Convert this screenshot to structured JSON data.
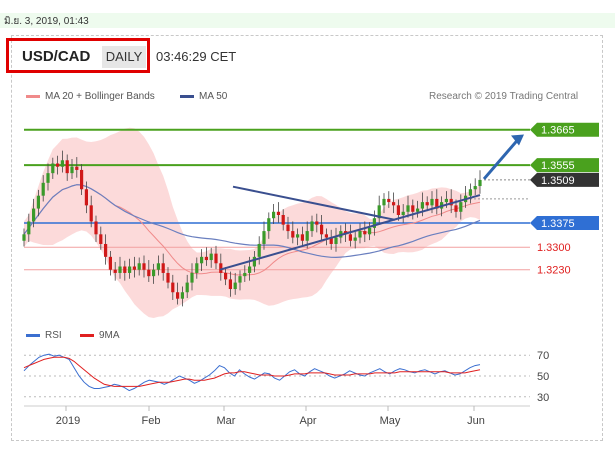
{
  "timestamp": "มิ.ย. 3, 2019, 01:43",
  "header": {
    "symbol": "USD/CAD",
    "period": "DAILY",
    "time": "03:46:29 CET"
  },
  "credit": "Research © 2019 Trading Central",
  "legend": {
    "bollinger": "MA 20 + Bollinger Bands",
    "ma50": "MA 50"
  },
  "rsi_legend": {
    "rsi": "RSI",
    "ma9": "9MA"
  },
  "colors": {
    "green_level": "#4aa11e",
    "blue_level": "#2f6fd4",
    "red_level": "#e02020",
    "dark_label": "#333333",
    "ma50": "#3a4f8f",
    "band_fill": "#fbd3d3",
    "arrow": "#2e66b0"
  },
  "chart_data": [
    {
      "type": "candlestick",
      "title": "USD/CAD",
      "x_tick_labels": [
        "2019",
        "Feb",
        "Mar",
        "Apr",
        "May",
        "Jun"
      ],
      "price_levels": [
        {
          "label": "1.3665",
          "value": 1.3665,
          "color": "#4aa11e",
          "kind": "resistance"
        },
        {
          "label": "1.3555",
          "value": 1.3555,
          "color": "#4aa11e",
          "kind": "resistance"
        },
        {
          "label": "1.3509",
          "value": 1.3509,
          "color": "#333333",
          "kind": "last"
        },
        {
          "label": "1.3375",
          "value": 1.3375,
          "color": "#2f6fd4",
          "kind": "pivot"
        },
        {
          "label": "1.3300",
          "value": 1.33,
          "color": "#e02020",
          "kind": "support"
        },
        {
          "label": "1.3230",
          "value": 1.323,
          "color": "#e02020",
          "kind": "support"
        }
      ],
      "ylim": [
        1.308,
        1.372
      ],
      "series": [
        {
          "name": "MA 20 + Bollinger Bands"
        },
        {
          "name": "MA 50"
        }
      ],
      "close_path": [
        1.334,
        1.338,
        1.342,
        1.346,
        1.35,
        1.353,
        1.356,
        1.355,
        1.357,
        1.353,
        1.355,
        1.354,
        1.348,
        1.343,
        1.338,
        1.334,
        1.331,
        1.327,
        1.323,
        1.322,
        1.324,
        1.322,
        1.324,
        1.323,
        1.325,
        1.323,
        1.321,
        1.323,
        1.325,
        1.322,
        1.319,
        1.316,
        1.314,
        1.316,
        1.319,
        1.322,
        1.325,
        1.327,
        1.326,
        1.328,
        1.325,
        1.322,
        1.32,
        1.317,
        1.319,
        1.321,
        1.322,
        1.324,
        1.327,
        1.331,
        1.335,
        1.339,
        1.341,
        1.34,
        1.337,
        1.335,
        1.333,
        1.334,
        1.332,
        1.335,
        1.338,
        1.337,
        1.334,
        1.333,
        1.331,
        1.333,
        1.335,
        1.334,
        1.332,
        1.333,
        1.335,
        1.334,
        1.336,
        1.339,
        1.343,
        1.345,
        1.344,
        1.343,
        1.34,
        1.341,
        1.343,
        1.341,
        1.342,
        1.344,
        1.343,
        1.345,
        1.342,
        1.344,
        1.345,
        1.343,
        1.341,
        1.344,
        1.346,
        1.348,
        1.349,
        1.3509
      ]
    },
    {
      "type": "line",
      "title": "RSI",
      "ylim": [
        25,
        75
      ],
      "y_ticks": [
        30,
        50,
        70
      ],
      "series": [
        {
          "name": "RSI",
          "color": "#3b6fd0",
          "values": [
            55,
            60,
            64,
            68,
            70,
            71,
            69,
            70,
            68,
            66,
            58,
            50,
            44,
            40,
            38,
            38,
            39,
            40,
            42,
            41,
            39,
            36,
            38,
            41,
            44,
            46,
            45,
            44,
            42,
            44,
            47,
            50,
            48,
            46,
            43,
            45,
            48,
            51,
            55,
            60,
            58,
            53,
            50,
            56,
            52,
            49,
            47,
            50,
            53,
            52,
            48,
            46,
            50,
            54,
            56,
            52,
            50,
            54,
            57,
            55,
            53,
            50,
            48,
            50,
            52,
            55,
            53,
            51,
            50,
            53,
            55,
            57,
            54,
            52,
            55,
            57,
            56,
            54,
            53,
            55,
            56,
            54,
            52,
            54,
            55,
            53,
            51,
            52,
            55,
            58,
            60,
            61
          ]
        },
        {
          "name": "9MA",
          "color": "#e02020",
          "values": [
            58,
            60,
            62,
            64,
            66,
            67,
            68,
            68,
            68,
            67,
            64,
            60,
            56,
            52,
            48,
            45,
            42,
            41,
            40,
            40,
            40,
            40,
            40,
            40,
            41,
            42,
            43,
            44,
            44,
            44,
            45,
            46,
            47,
            47,
            46,
            46,
            46,
            47,
            48,
            50,
            52,
            53,
            53,
            54,
            54,
            53,
            52,
            51,
            51,
            51,
            50,
            50,
            50,
            51,
            52,
            52,
            52,
            53,
            53,
            53,
            53,
            52,
            51,
            51,
            51,
            51,
            52,
            52,
            52,
            52,
            53,
            53,
            53,
            53,
            53,
            54,
            54,
            54,
            54,
            54,
            54,
            54,
            54,
            54,
            54,
            53,
            53,
            53,
            53,
            54,
            55,
            56
          ]
        }
      ]
    }
  ]
}
